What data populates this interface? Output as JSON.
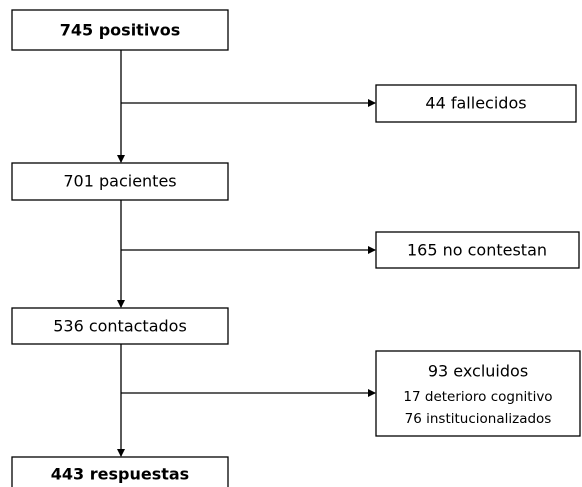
{
  "nodes": [
    {
      "label": "745 positivos"
    },
    {
      "label": "44 fallecidos"
    },
    {
      "label": "701 pacientes"
    },
    {
      "label": "165 no contestan"
    },
    {
      "label": "536 contactados"
    },
    {
      "label": "93 excluidos",
      "details": [
        "17 deterioro cognitivo",
        "76 institucionalizados"
      ]
    },
    {
      "label": "443 respuestas"
    }
  ]
}
